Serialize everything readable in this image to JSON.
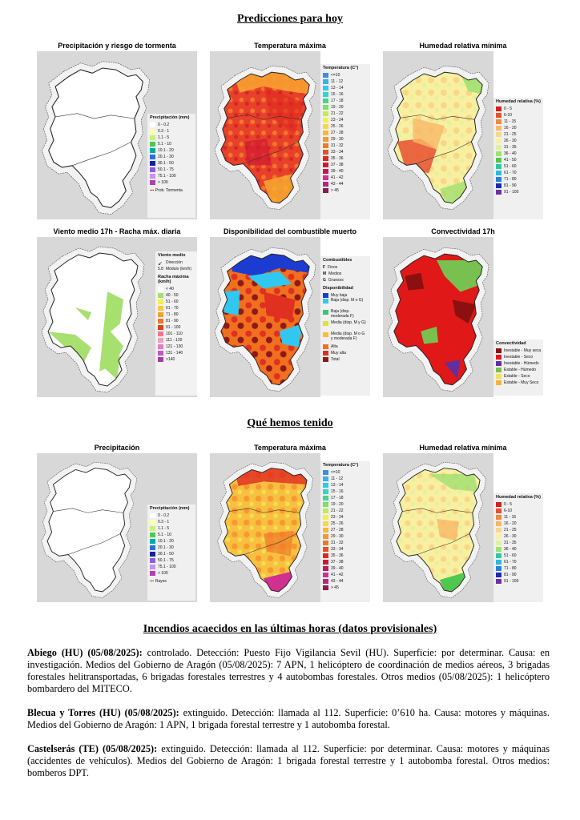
{
  "sections": {
    "today": "Predicciones para hoy",
    "past": "Qué hemos tenido",
    "fires": "Incendios acaecidos en las últimas horas (datos provisionales)"
  },
  "panels": {
    "precip_today": {
      "title": "Precipitación y riesgo de tormenta",
      "legend_title": "Precipitación (mm)",
      "items": [
        {
          "label": "0 - 0.2",
          "color": "#ffffff"
        },
        {
          "label": "0.3 - 1",
          "color": "#ffffb0"
        },
        {
          "label": "1.1 - 5",
          "color": "#c8f07c"
        },
        {
          "label": "5.1 - 10",
          "color": "#50c850"
        },
        {
          "label": "10.1 - 20",
          "color": "#00a8a8"
        },
        {
          "label": "20.1 - 30",
          "color": "#2c6ee0"
        },
        {
          "label": "30.1 - 50",
          "color": "#1424a0"
        },
        {
          "label": "50.1 - 75",
          "color": "#8c5ce0"
        },
        {
          "label": "75.1 - 100",
          "color": "#c890f0"
        },
        {
          "label": "> 100",
          "color": "#b040b0"
        }
      ],
      "note": "Prob. Tormenta"
    },
    "tmax_today": {
      "title": "Temperatura máxima",
      "legend_title": "Temperatura (C°)",
      "items": [
        {
          "label": "<=10",
          "color": "#3c8ce0"
        },
        {
          "label": "11 - 12",
          "color": "#38b0f0"
        },
        {
          "label": "13 - 14",
          "color": "#30c8f0"
        },
        {
          "label": "15 - 16",
          "color": "#30d8c8"
        },
        {
          "label": "17 - 18",
          "color": "#40d890"
        },
        {
          "label": "19 - 20",
          "color": "#80e060"
        },
        {
          "label": "21 - 22",
          "color": "#c0ec50"
        },
        {
          "label": "23 - 24",
          "color": "#f0f050"
        },
        {
          "label": "25 - 26",
          "color": "#f8d840"
        },
        {
          "label": "27 - 28",
          "color": "#f8b830"
        },
        {
          "label": "29 - 30",
          "color": "#f89830"
        },
        {
          "label": "31 - 32",
          "color": "#f07828"
        },
        {
          "label": "33 - 34",
          "color": "#e85020"
        },
        {
          "label": "35 - 36",
          "color": "#e02820"
        },
        {
          "label": "37 - 38",
          "color": "#d01830"
        },
        {
          "label": "39 - 40",
          "color": "#c01858"
        },
        {
          "label": "41 - 42",
          "color": "#d03090"
        },
        {
          "label": "43 - 44",
          "color": "#b02880"
        },
        {
          "label": "> 45",
          "color": "#8c1c4c"
        }
      ]
    },
    "rh_today": {
      "title": "Humedad relativa mínima",
      "legend_title": "Humedad relativa (%)",
      "items": [
        {
          "label": "0 - 5",
          "color": "#d02020"
        },
        {
          "label": "6-10",
          "color": "#e85030"
        },
        {
          "label": "11 - 15",
          "color": "#f08848"
        },
        {
          "label": "16 - 20",
          "color": "#f8b868"
        },
        {
          "label": "21 - 25",
          "color": "#f8d888"
        },
        {
          "label": "26 - 30",
          "color": "#f8f0a8"
        },
        {
          "label": "31 - 35",
          "color": "#e0f0a0"
        },
        {
          "label": "36 - 40",
          "color": "#a0e070"
        },
        {
          "label": "41 - 50",
          "color": "#50c850"
        },
        {
          "label": "51 - 60",
          "color": "#30c8a0"
        },
        {
          "label": "61 - 70",
          "color": "#30b8e0"
        },
        {
          "label": "71 - 80",
          "color": "#2880d8"
        },
        {
          "label": "81 - 90",
          "color": "#2028b0"
        },
        {
          "label": "91 - 100",
          "color": "#7030a0"
        }
      ]
    },
    "wind_today": {
      "title": "Viento medio 17h - Racha máx. diaria",
      "legend_title": "Viento medio",
      "dir_label": "Dirección",
      "mod_label": "Módulo (km/h)",
      "mod_value": "5.8",
      "gust_title": "Racha máxima (km/h)",
      "items": [
        {
          "label": "< 40",
          "color": "#ffffff"
        },
        {
          "label": "40 - 50",
          "color": "#a8e070"
        },
        {
          "label": "51 - 60",
          "color": "#f0f050"
        },
        {
          "label": "61 - 70",
          "color": "#f8c840"
        },
        {
          "label": "71 - 80",
          "color": "#f8a030"
        },
        {
          "label": "81 - 90",
          "color": "#f07828"
        },
        {
          "label": "91 - 100",
          "color": "#e04020"
        },
        {
          "label": "101 - 110",
          "color": "#f07890"
        },
        {
          "label": "111 - 120",
          "color": "#f0a0c0"
        },
        {
          "label": "121 - 130",
          "color": "#e878c8"
        },
        {
          "label": "131 - 140",
          "color": "#c058c0"
        },
        {
          "label": ">140",
          "color": "#a040a0"
        }
      ]
    },
    "fuel_today": {
      "title": "Disponibilidad del combustible muerto",
      "legend_title": "Combustibles",
      "fuels": [
        {
          "code": "F",
          "label": "Finos"
        },
        {
          "code": "M",
          "label": "Medios"
        },
        {
          "code": "G",
          "label": "Gruesos"
        }
      ],
      "avail_title": "Disponibilidad",
      "items": [
        {
          "label": "Muy baja",
          "color": "#1c3cd0"
        },
        {
          "label": "Baja (disp. M o G)",
          "color": "#30c8f0"
        },
        {
          "label": "Baja (disp. moderada F)",
          "color": "#38c870"
        },
        {
          "label": "Media (disp. M y G)",
          "color": "#e0e040"
        },
        {
          "label": "Media (disp. M o G y moderada F)",
          "color": "#f8c030"
        },
        {
          "label": "Alta",
          "color": "#f07020"
        },
        {
          "label": "Muy alta",
          "color": "#e03020"
        },
        {
          "label": "Total",
          "color": "#901818"
        }
      ]
    },
    "conv_today": {
      "title": "Convectividad 17h",
      "legend_title": "Convectividad",
      "items": [
        {
          "label": "Inestable - Muy seca",
          "color": "#8c1010"
        },
        {
          "label": "Inestable - Seco",
          "color": "#e01818"
        },
        {
          "label": "Inestable - Húmedo",
          "color": "#6030a0"
        },
        {
          "label": "Estable - Húmedo",
          "color": "#78c050"
        },
        {
          "label": "Estable - Seco",
          "color": "#f0e060"
        },
        {
          "label": "Estable - Muy Seco",
          "color": "#f8b040"
        }
      ]
    },
    "precip_past": {
      "title": "Precipitación",
      "legend_title": "Precipitación (mm)",
      "items": [
        {
          "label": "0 - 0.2",
          "color": "#ffffff"
        },
        {
          "label": "0.3 - 1",
          "color": "#ffffb0"
        },
        {
          "label": "1.1 - 5",
          "color": "#c8f07c"
        },
        {
          "label": "5.1 - 10",
          "color": "#50c850"
        },
        {
          "label": "10.1 - 20",
          "color": "#00a8a8"
        },
        {
          "label": "20.1 - 30",
          "color": "#2c6ee0"
        },
        {
          "label": "30.1 - 50",
          "color": "#1424a0"
        },
        {
          "label": "50.1 - 75",
          "color": "#8c5ce0"
        },
        {
          "label": "75.1 - 100",
          "color": "#c890f0"
        },
        {
          "label": "> 100",
          "color": "#b040b0"
        }
      ],
      "note": "Rayos"
    },
    "tmax_past": {
      "title": "Temperatura máxima",
      "legend_title": "Temperatura (C°)",
      "items": [
        {
          "label": "<=10",
          "color": "#3c8ce0"
        },
        {
          "label": "11 - 12",
          "color": "#38b0f0"
        },
        {
          "label": "13 - 14",
          "color": "#30c8f0"
        },
        {
          "label": "15 - 16",
          "color": "#30d8c8"
        },
        {
          "label": "17 - 18",
          "color": "#40d890"
        },
        {
          "label": "19 - 20",
          "color": "#80e060"
        },
        {
          "label": "21 - 22",
          "color": "#c0ec50"
        },
        {
          "label": "23 - 24",
          "color": "#f0f050"
        },
        {
          "label": "25 - 26",
          "color": "#f8d840"
        },
        {
          "label": "27 - 28",
          "color": "#f8b830"
        },
        {
          "label": "29 - 30",
          "color": "#f89830"
        },
        {
          "label": "31 - 32",
          "color": "#f07828"
        },
        {
          "label": "33 - 34",
          "color": "#e85020"
        },
        {
          "label": "35 - 36",
          "color": "#e02820"
        },
        {
          "label": "37 - 38",
          "color": "#d01830"
        },
        {
          "label": "39 - 40",
          "color": "#c01858"
        },
        {
          "label": "41 - 42",
          "color": "#d03090"
        },
        {
          "label": "43 - 44",
          "color": "#b02880"
        },
        {
          "label": "> 45",
          "color": "#8c1c4c"
        }
      ]
    },
    "rh_past": {
      "title": "Humedad relativa mínima",
      "legend_title": "Humedad relativa (%)",
      "items": [
        {
          "label": "0 - 5",
          "color": "#d02020"
        },
        {
          "label": "6-10",
          "color": "#e85030"
        },
        {
          "label": "11 - 15",
          "color": "#f08848"
        },
        {
          "label": "16 - 20",
          "color": "#f8b868"
        },
        {
          "label": "21 - 25",
          "color": "#f8d888"
        },
        {
          "label": "26 - 30",
          "color": "#f8f0a8"
        },
        {
          "label": "31 - 35",
          "color": "#e0f0a0"
        },
        {
          "label": "36 - 40",
          "color": "#a0e070"
        },
        {
          "label": "51 - 60",
          "color": "#30c8a0"
        },
        {
          "label": "61 - 70",
          "color": "#30b8e0"
        },
        {
          "label": "71 - 80",
          "color": "#2880d8"
        },
        {
          "label": "81 - 90",
          "color": "#2028b0"
        },
        {
          "label": "91 - 100",
          "color": "#7030a0"
        }
      ]
    }
  },
  "fires": [
    {
      "name": "Abiego (HU) (05/08/2025):",
      "text": " controlado. Detección: Puesto Fijo Vigilancia Sevil (HU). Superficie: por determinar. Causa: en investigación. Medios del Gobierno de Aragón (05/08/2025): 7 APN, 1 helicóptero de coordinación de medios aéreos, 3 brigadas forestales helitransportadas, 6 brigadas forestales terrestres y 4 autobombas forestales. Otros medios (05/08/2025): 1 helicóptero bombardero del MITECO."
    },
    {
      "name": "Blecua y Torres (HU) (05/08/2025):",
      "text": " extinguido. Detección: llamada al 112. Superficie: 0’610 ha. Causa: motores y máquinas. Medios del Gobierno de Aragón: 1 APN, 1 brigada forestal terrestre y 1 autobomba forestal."
    },
    {
      "name": "Castelserás (TE) (05/08/2025):",
      "text": " extinguido. Detección: llamada al 112. Superficie: por determinar. Causa: motores y máquinas (accidentes de vehículos). Medios del Gobierno de Aragón: 1 brigada forestal terrestre y 1 autobomba forestal. Otros medios: bomberos DPT."
    }
  ]
}
